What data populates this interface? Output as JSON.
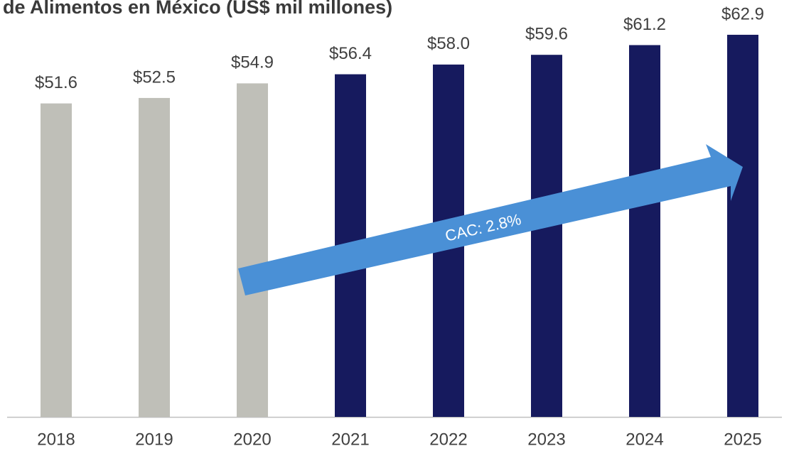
{
  "chart_data": {
    "type": "bar",
    "title": "de Alimentos en México (US$ mil millones)",
    "categories": [
      "2018",
      "2019",
      "2020",
      "2021",
      "2022",
      "2023",
      "2024",
      "2025"
    ],
    "values": [
      51.6,
      52.5,
      54.9,
      56.4,
      58.0,
      59.6,
      61.2,
      62.9
    ],
    "value_labels": [
      "$51.6",
      "$52.5",
      "$54.9",
      "$56.4",
      "$58.0",
      "$59.6",
      "$61.2",
      "$62.9"
    ],
    "colors": [
      "#bfbfb8",
      "#bfbfb8",
      "#bfbfb8",
      "#161a5e",
      "#161a5e",
      "#161a5e",
      "#161a5e",
      "#161a5e"
    ],
    "ylim": [
      0,
      65
    ],
    "annotation": "CAC: 2.8%"
  }
}
